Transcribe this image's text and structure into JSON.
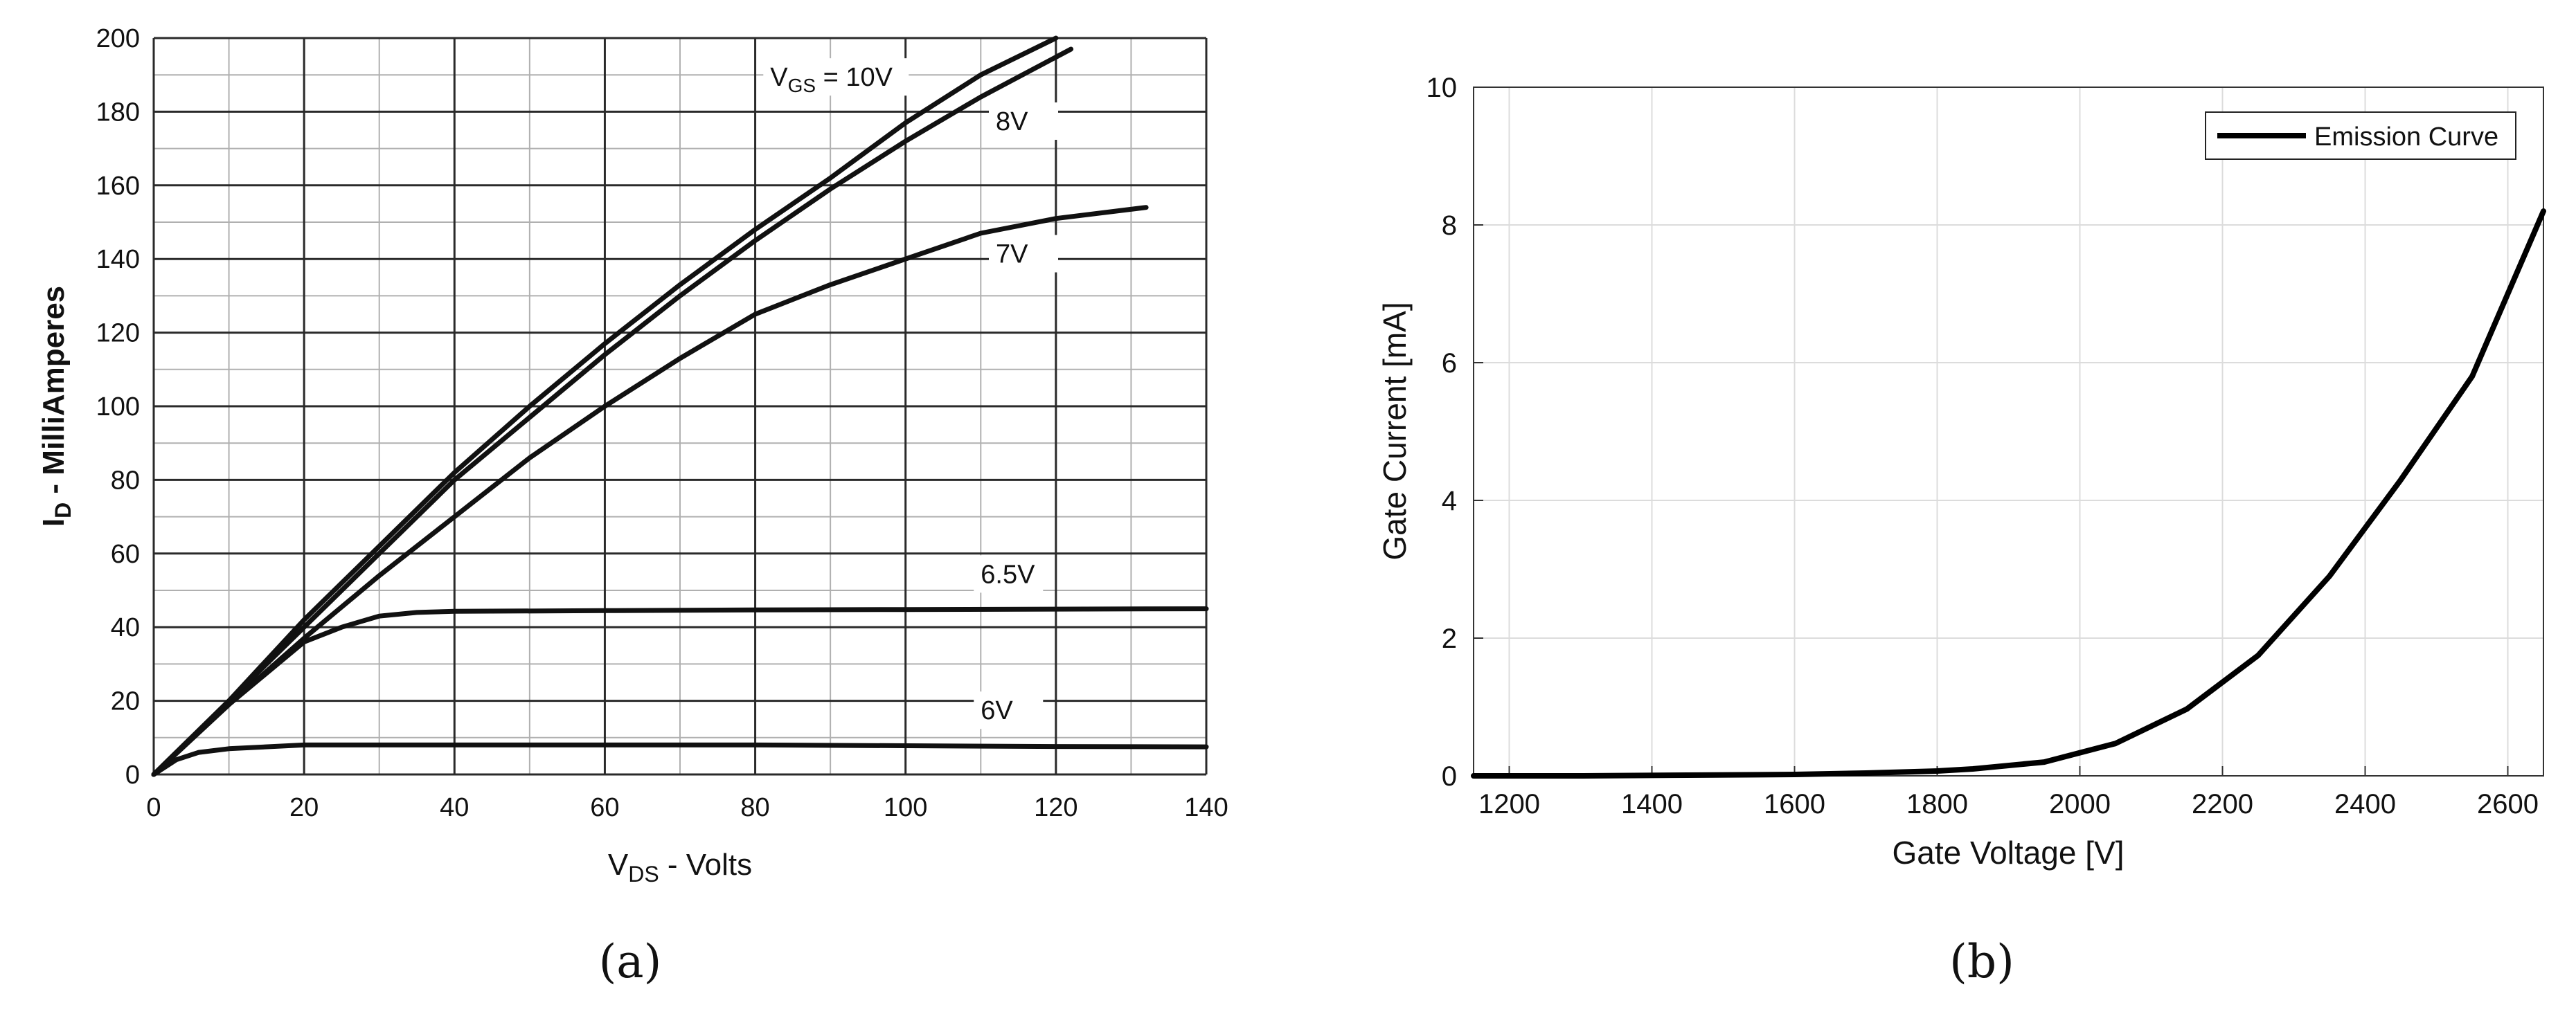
{
  "figure": {
    "captions": [
      "(a)",
      "(b)"
    ]
  },
  "chart_data": [
    {
      "type": "line",
      "title": "",
      "xlabel": {
        "main": "V",
        "sub": "DS",
        "rest": " - Volts"
      },
      "ylabel": {
        "main": "I",
        "sub": "D",
        "rest": " - MilliAmperes"
      },
      "xlim": [
        0,
        140
      ],
      "ylim": [
        0,
        200
      ],
      "x_ticks": [
        0,
        20,
        40,
        60,
        80,
        100,
        120,
        140
      ],
      "y_ticks": [
        0,
        20,
        40,
        60,
        80,
        100,
        120,
        140,
        160,
        180,
        200
      ],
      "grid": true,
      "line_color": "#111111",
      "series": [
        {
          "name": "VGS = 10V",
          "label": {
            "main": "V",
            "sub": "GS",
            "rest": " = 10V"
          },
          "x": [
            0,
            10,
            20,
            30,
            40,
            50,
            60,
            70,
            80,
            90,
            100,
            110,
            120
          ],
          "y": [
            0,
            20,
            42,
            62,
            82,
            100,
            117,
            133,
            148,
            162,
            177,
            190,
            200
          ]
        },
        {
          "name": "8V",
          "label": {
            "main": "8V"
          },
          "x": [
            0,
            10,
            20,
            30,
            40,
            50,
            60,
            70,
            80,
            90,
            100,
            110,
            122
          ],
          "y": [
            0,
            20,
            40,
            60,
            80,
            97,
            114,
            130,
            145,
            159,
            172,
            184,
            197
          ]
        },
        {
          "name": "7V",
          "label": {
            "main": "7V"
          },
          "x": [
            0,
            10,
            20,
            30,
            40,
            50,
            60,
            70,
            80,
            90,
            100,
            110,
            120,
            132
          ],
          "y": [
            0,
            19,
            37,
            54,
            70,
            86,
            100,
            113,
            125,
            133,
            140,
            147,
            151,
            154
          ]
        },
        {
          "name": "6.5V",
          "label": {
            "main": "6.5V"
          },
          "x": [
            0,
            10,
            20,
            25,
            30,
            35,
            40,
            60,
            80,
            100,
            120,
            140
          ],
          "y": [
            0,
            19,
            36,
            40,
            43,
            44,
            44.3,
            44.5,
            44.7,
            44.8,
            44.9,
            45
          ]
        },
        {
          "name": "6V",
          "label": {
            "main": "6V"
          },
          "x": [
            0,
            3,
            6,
            10,
            20,
            40,
            60,
            80,
            100,
            120,
            140
          ],
          "y": [
            0,
            4,
            6,
            7,
            8,
            8,
            8,
            8,
            7.8,
            7.6,
            7.5
          ]
        }
      ]
    },
    {
      "type": "line",
      "title": "",
      "xlabel": "Gate Voltage [V]",
      "ylabel": "Gate Current [mA]",
      "xlim": [
        1150,
        2650
      ],
      "ylim": [
        0,
        10
      ],
      "x_ticks": [
        1200,
        1400,
        1600,
        1800,
        2000,
        2200,
        2400,
        2600
      ],
      "y_ticks": [
        0,
        2,
        4,
        6,
        8,
        10
      ],
      "grid": true,
      "legend": "top-right",
      "line_color": "#000000",
      "series": [
        {
          "name": "Emission Curve",
          "x": [
            1150,
            1300,
            1450,
            1600,
            1700,
            1800,
            1850,
            1950,
            2050,
            2150,
            2250,
            2350,
            2450,
            2550,
            2650
          ],
          "y": [
            0,
            0,
            0.01,
            0.02,
            0.04,
            0.07,
            0.1,
            0.2,
            0.47,
            0.97,
            1.75,
            2.9,
            4.3,
            5.8,
            8.2
          ]
        }
      ]
    }
  ]
}
